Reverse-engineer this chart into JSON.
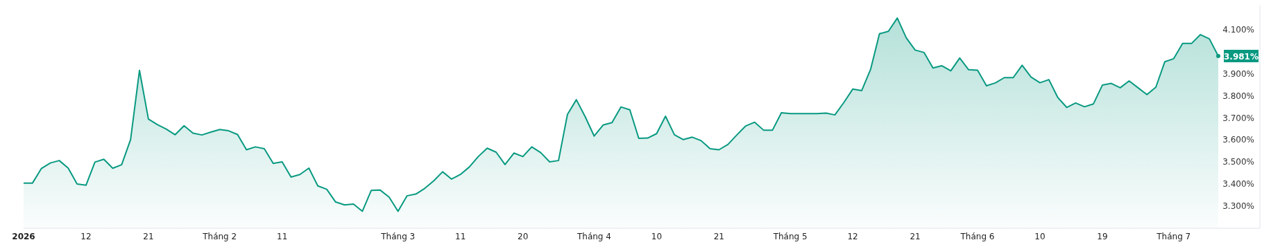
{
  "chart_data": {
    "type": "area",
    "categories": [
      "2026",
      null,
      null,
      null,
      null,
      null,
      null,
      "12",
      null,
      null,
      null,
      null,
      null,
      null,
      "21",
      null,
      null,
      null,
      null,
      null,
      null,
      null,
      "Tháng 2",
      null,
      null,
      null,
      null,
      null,
      null,
      "11",
      null,
      null,
      null,
      null,
      null,
      null,
      null,
      null,
      null,
      null,
      null,
      null,
      "Tháng 3",
      null,
      null,
      null,
      null,
      null,
      null,
      "11",
      null,
      null,
      null,
      null,
      null,
      null,
      "20",
      null,
      null,
      null,
      null,
      null,
      null,
      null,
      "Tháng 4",
      null,
      null,
      null,
      null,
      null,
      null,
      "10",
      null,
      null,
      null,
      null,
      null,
      null,
      "21",
      null,
      null,
      null,
      null,
      null,
      null,
      null,
      "Tháng 5",
      null,
      null,
      null,
      null,
      null,
      null,
      "12",
      null,
      null,
      null,
      null,
      null,
      null,
      "21",
      null,
      null,
      null,
      null,
      null,
      null,
      "Tháng 6",
      null,
      null,
      null,
      null,
      null,
      null,
      "10",
      null,
      null,
      null,
      null,
      null,
      null,
      "19",
      null,
      null,
      null,
      null,
      null,
      null,
      null,
      "Tháng 7",
      null,
      null,
      null,
      null,
      null
    ],
    "series": [
      {
        "color": "#089981",
        "values": [
          3.405,
          3.405,
          3.471,
          3.496,
          3.507,
          3.473,
          3.401,
          3.395,
          3.5,
          3.513,
          3.472,
          3.488,
          3.602,
          3.916,
          3.695,
          3.67,
          3.65,
          3.624,
          3.665,
          3.631,
          3.623,
          3.636,
          3.648,
          3.642,
          3.625,
          3.556,
          3.569,
          3.561,
          3.494,
          3.501,
          3.432,
          3.444,
          3.473,
          3.392,
          3.377,
          3.319,
          3.306,
          3.31,
          3.277,
          3.372,
          3.373,
          3.341,
          3.277,
          3.347,
          3.355,
          3.381,
          3.415,
          3.456,
          3.423,
          3.444,
          3.478,
          3.525,
          3.563,
          3.545,
          3.489,
          3.541,
          3.525,
          3.569,
          3.543,
          3.501,
          3.507,
          3.716,
          3.783,
          3.705,
          3.618,
          3.668,
          3.679,
          3.75,
          3.737,
          3.608,
          3.609,
          3.629,
          3.708,
          3.624,
          3.602,
          3.613,
          3.597,
          3.561,
          3.556,
          3.58,
          3.623,
          3.664,
          3.681,
          3.645,
          3.645,
          3.724,
          3.72,
          3.72,
          3.72,
          3.72,
          3.722,
          3.714,
          3.77,
          3.831,
          3.824,
          3.92,
          4.082,
          4.093,
          4.153,
          4.064,
          4.008,
          3.997,
          3.927,
          3.937,
          3.914,
          3.972,
          3.919,
          3.917,
          3.846,
          3.859,
          3.883,
          3.883,
          3.939,
          3.886,
          3.86,
          3.874,
          3.793,
          3.748,
          3.768,
          3.751,
          3.764,
          3.849,
          3.857,
          3.837,
          3.868,
          3.837,
          3.806,
          3.84,
          3.955,
          3.969,
          4.038,
          4.038,
          4.078,
          4.059,
          3.981
        ],
        "value_labels": [
          null,
          null,
          null,
          null,
          null,
          null,
          null,
          null,
          null,
          null,
          null,
          null,
          null,
          null,
          null,
          null,
          null,
          null,
          null,
          null,
          null,
          null,
          null,
          null,
          null,
          null,
          null,
          null,
          null,
          null,
          null,
          null,
          null,
          null,
          null,
          null,
          null,
          null,
          null,
          null,
          null,
          null,
          null,
          null,
          null,
          null,
          null,
          null,
          null,
          null,
          null,
          null,
          null,
          null,
          null,
          null,
          null,
          null,
          null,
          null,
          null,
          null,
          null,
          null,
          null,
          null,
          null,
          null,
          null,
          null,
          null,
          null,
          null,
          null,
          null,
          null,
          null,
          null,
          null,
          null,
          null,
          null,
          null,
          null,
          null,
          null,
          null,
          null,
          null,
          null,
          null,
          null,
          null,
          null,
          null,
          null,
          null,
          null,
          null,
          null,
          null,
          null,
          null,
          null,
          null,
          null,
          null,
          null,
          null,
          null,
          null,
          null,
          null,
          null,
          null,
          null,
          null,
          null,
          null,
          null,
          null,
          null,
          null,
          null,
          null,
          null,
          null,
          null,
          null,
          null,
          null,
          null,
          null,
          null,
          "3.981%"
        ]
      }
    ],
    "ylim": [
      3.2,
      4.21
    ],
    "yticks": [
      {
        "value": 3.3,
        "label": "3.300%"
      },
      {
        "value": 3.4,
        "label": "3.400%"
      },
      {
        "value": 3.5,
        "label": "3.500%"
      },
      {
        "value": 3.6,
        "label": "3.600%"
      },
      {
        "value": 3.7,
        "label": "3.700%"
      },
      {
        "value": 3.8,
        "label": "3.800%"
      },
      {
        "value": 3.9,
        "label": "3.900%"
      },
      {
        "value": 4.1,
        "label": "4.100%"
      }
    ],
    "grid": false
  }
}
